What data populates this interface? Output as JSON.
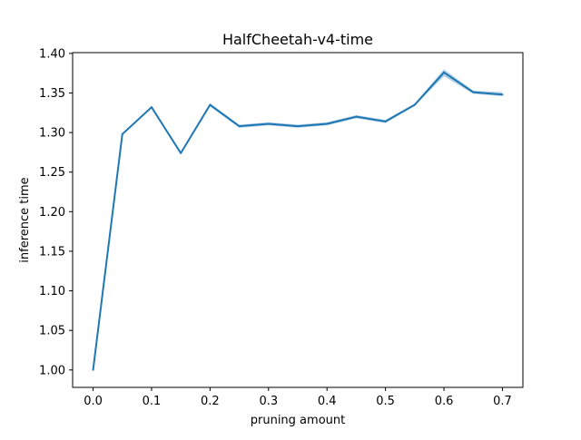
{
  "chart_data": {
    "type": "line",
    "title": "HalfCheetah-v4-time",
    "xlabel": "pruning amount",
    "ylabel": "inference time",
    "xlim": [
      -0.035,
      0.735
    ],
    "ylim": [
      0.978,
      1.401
    ],
    "xticks": [
      0.0,
      0.1,
      0.2,
      0.3,
      0.4,
      0.5,
      0.6,
      0.7
    ],
    "xtick_labels": [
      "0.0",
      "0.1",
      "0.2",
      "0.3",
      "0.4",
      "0.5",
      "0.6",
      "0.7"
    ],
    "yticks": [
      1.0,
      1.05,
      1.1,
      1.15,
      1.2,
      1.25,
      1.3,
      1.35,
      1.4
    ],
    "ytick_labels": [
      "1.00",
      "1.05",
      "1.10",
      "1.15",
      "1.20",
      "1.25",
      "1.30",
      "1.35",
      "1.40"
    ],
    "grid": false,
    "colors": {
      "line": "#1f77b4",
      "band": "#1f77b4"
    },
    "series": [
      {
        "x": [
          0.0,
          0.05,
          0.1,
          0.15,
          0.2,
          0.25,
          0.3,
          0.35,
          0.4,
          0.45,
          0.5,
          0.55,
          0.6,
          0.65,
          0.7
        ],
        "y": [
          1.0,
          1.298,
          1.332,
          1.274,
          1.335,
          1.308,
          1.311,
          1.308,
          1.311,
          1.32,
          1.314,
          1.335,
          1.376,
          1.351,
          1.348
        ],
        "y_low": [
          1.0,
          1.298,
          1.331,
          1.273,
          1.333,
          1.306,
          1.309,
          1.306,
          1.309,
          1.318,
          1.312,
          1.334,
          1.371,
          1.349,
          1.346
        ],
        "y_high": [
          1.0,
          1.298,
          1.334,
          1.275,
          1.337,
          1.31,
          1.313,
          1.31,
          1.313,
          1.322,
          1.316,
          1.337,
          1.38,
          1.353,
          1.351
        ]
      }
    ]
  }
}
